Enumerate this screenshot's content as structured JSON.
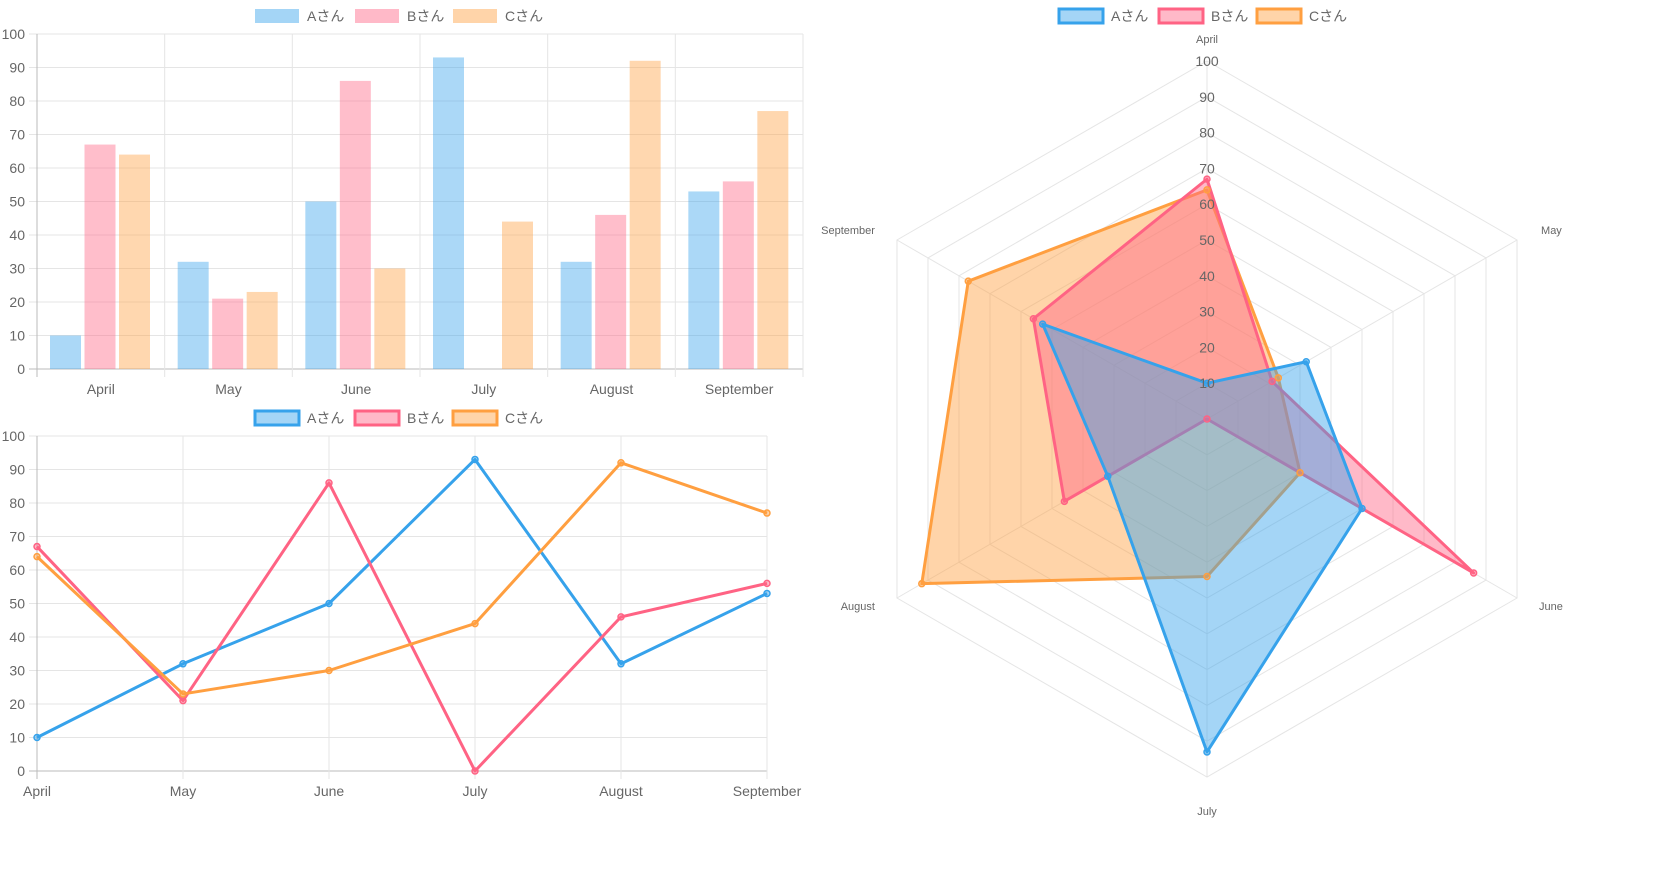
{
  "colors": {
    "a": "#36a2eb",
    "b": "#ff6384",
    "c": "#ff9f40"
  },
  "legend": [
    "Aさん",
    "Bさん",
    "Cさん"
  ],
  "chart_data": [
    {
      "type": "bar",
      "categories": [
        "April",
        "May",
        "June",
        "July",
        "August",
        "September"
      ],
      "ylim": [
        0,
        100
      ],
      "yticks": [
        0,
        10,
        20,
        30,
        40,
        50,
        60,
        70,
        80,
        90,
        100
      ],
      "grid": true,
      "legend_position": "top",
      "series": [
        {
          "name": "Aさん",
          "values": [
            10,
            32,
            50,
            93,
            32,
            53
          ]
        },
        {
          "name": "Bさん",
          "values": [
            67,
            21,
            86,
            0,
            46,
            56
          ]
        },
        {
          "name": "Cさん",
          "values": [
            64,
            23,
            30,
            44,
            92,
            77
          ]
        }
      ]
    },
    {
      "type": "line",
      "categories": [
        "April",
        "May",
        "June",
        "July",
        "August",
        "September"
      ],
      "ylim": [
        0,
        100
      ],
      "yticks": [
        0,
        10,
        20,
        30,
        40,
        50,
        60,
        70,
        80,
        90,
        100
      ],
      "grid": true,
      "legend_position": "top",
      "series": [
        {
          "name": "Aさん",
          "values": [
            10,
            32,
            50,
            93,
            32,
            53
          ]
        },
        {
          "name": "Bさん",
          "values": [
            67,
            21,
            86,
            0,
            46,
            56
          ]
        },
        {
          "name": "Cさん",
          "values": [
            64,
            23,
            30,
            44,
            92,
            77
          ]
        }
      ]
    },
    {
      "type": "radar",
      "categories": [
        "April",
        "May",
        "June",
        "July",
        "August",
        "September"
      ],
      "rlim": [
        0,
        100
      ],
      "rticks": [
        10,
        20,
        30,
        40,
        50,
        60,
        70,
        80,
        90,
        100
      ],
      "grid": true,
      "legend_position": "top",
      "series": [
        {
          "name": "Aさん",
          "values": [
            10,
            32,
            50,
            93,
            32,
            53
          ]
        },
        {
          "name": "Bさん",
          "values": [
            67,
            21,
            86,
            0,
            46,
            56
          ]
        },
        {
          "name": "Cさん",
          "values": [
            64,
            23,
            30,
            44,
            92,
            77
          ]
        }
      ]
    }
  ]
}
